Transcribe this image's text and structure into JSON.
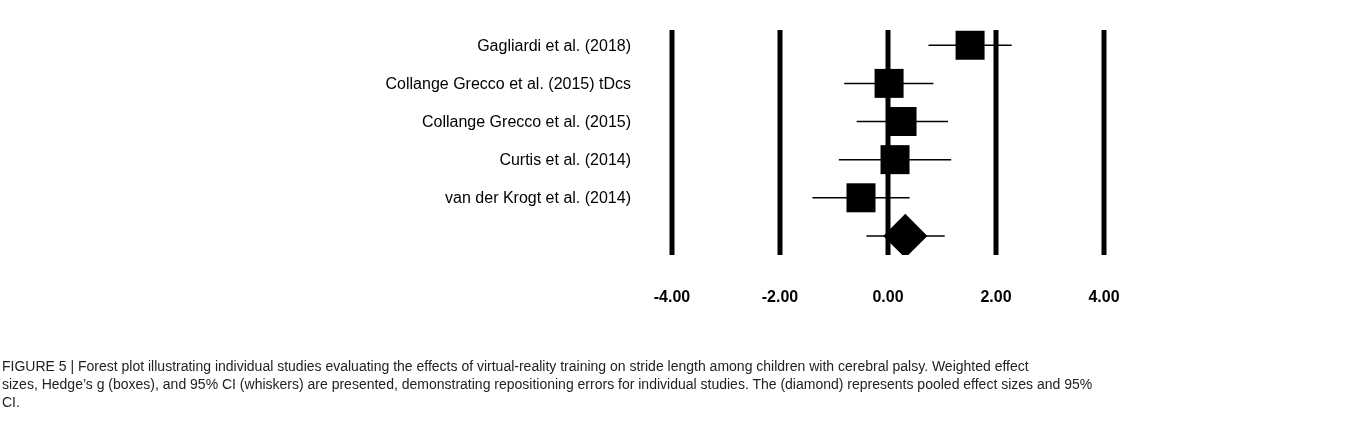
{
  "chart_data": {
    "type": "scatter",
    "orientation": "horizontal",
    "categories": [
      "Gagliardi et al. (2018)",
      "Collange Grecco et al. (2015) tDcs",
      "Collange Grecco et al. (2015)",
      "Curtis et al. (2014)",
      "van der Krogt et al. (2014)",
      null
    ],
    "series": [
      {
        "color": "#000000",
        "marker": "square",
        "values": [
          1.52,
          0.02,
          0.26,
          0.13,
          -0.5,
          null
        ],
        "errors": [
          [
            0.75,
            2.29
          ],
          [
            -0.81,
            0.84
          ],
          [
            -0.58,
            1.11
          ],
          [
            -0.91,
            1.17
          ],
          [
            -1.4,
            0.4
          ],
          null
        ]
      },
      {
        "color": "#000000",
        "marker": "diamond",
        "values": [
          null,
          null,
          null,
          null,
          null,
          0.32
        ],
        "errors": [
          null,
          null,
          null,
          null,
          null,
          [
            -0.4,
            1.05
          ]
        ]
      }
    ],
    "xlim": [
      -4,
      4
    ],
    "xticks": [
      {
        "value": -4,
        "label": "-4.00"
      },
      {
        "value": -2,
        "label": "-2.00"
      },
      {
        "value": 0,
        "label": "0.00"
      },
      {
        "value": 2,
        "label": "2.00"
      },
      {
        "value": 4,
        "label": "4.00"
      }
    ],
    "grid": "x",
    "annotations": [
      "FIGURE 5 | Forest plot illustrating individual studies evaluating the effects of virtual-reality training on stride length among children with cerebral palsy. Weighted effect sizes, Hedge’s g (boxes), and 95% CI (whiskers) are presented, demonstrating repositioning errors for individual studies. The (diamond) represents pooled effect sizes and 95% CI."
    ]
  }
}
